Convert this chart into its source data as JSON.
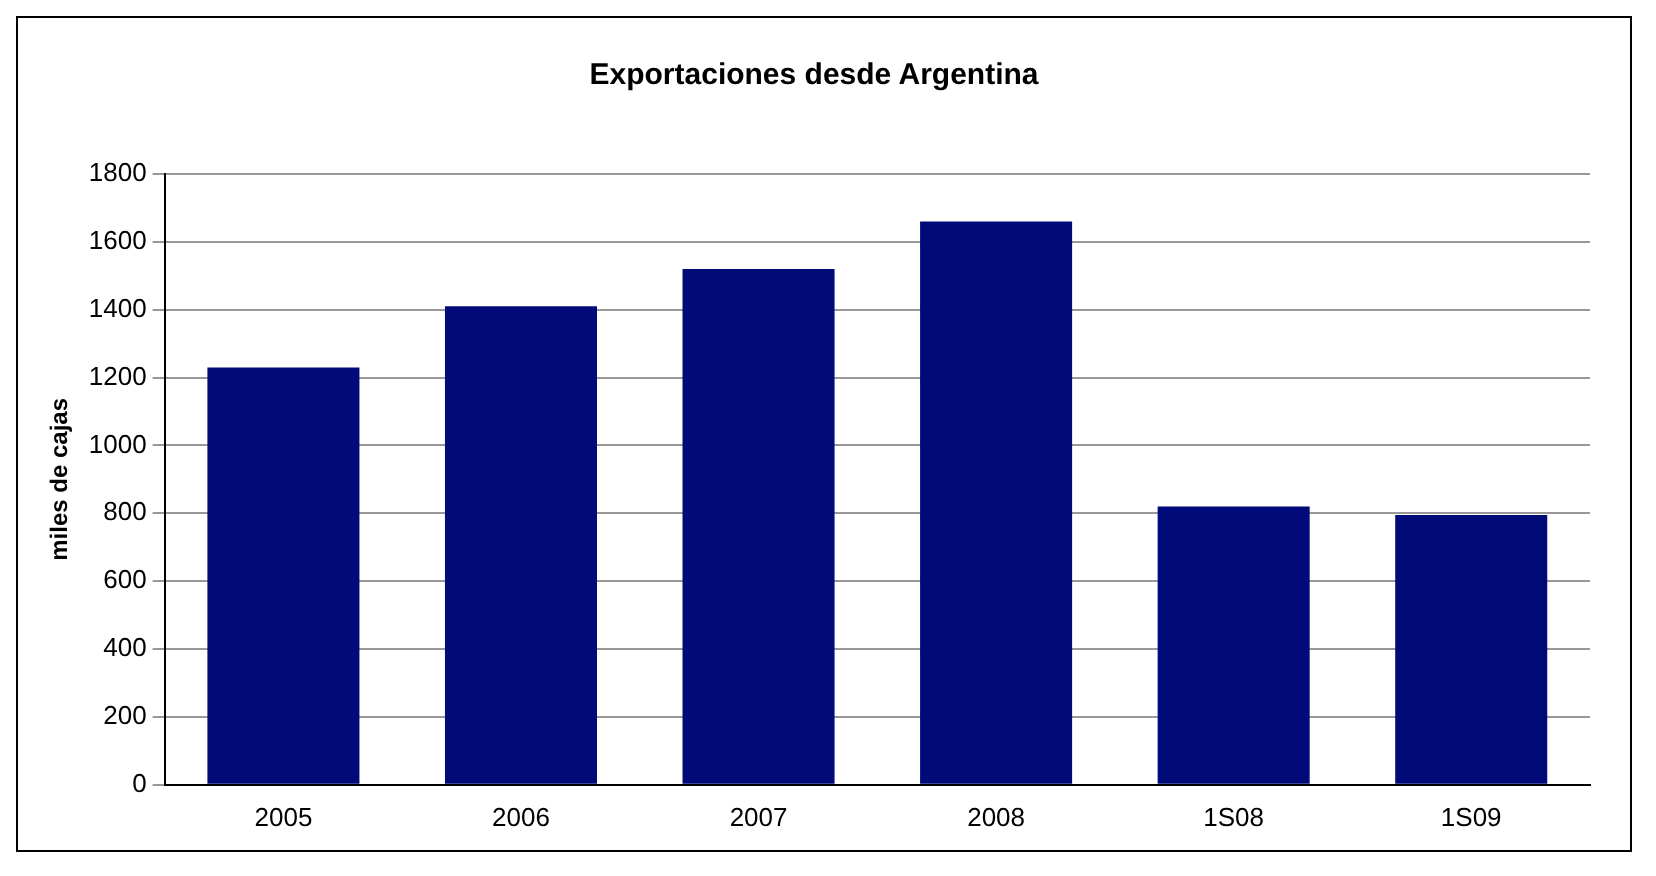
{
  "chart_data": {
    "type": "bar",
    "title": "Exportaciones desde Argentina",
    "ylabel": "miles de cajas",
    "categories": [
      "2005",
      "2006",
      "2007",
      "2008",
      "1S08",
      "1S09"
    ],
    "values": [
      1230,
      1410,
      1520,
      1660,
      820,
      795
    ],
    "color": "#000a78",
    "ylim": [
      0,
      1800
    ],
    "yticks": [
      0,
      200,
      400,
      600,
      800,
      1000,
      1200,
      1400,
      1600,
      1800
    ],
    "grid": "y",
    "legend": false
  }
}
